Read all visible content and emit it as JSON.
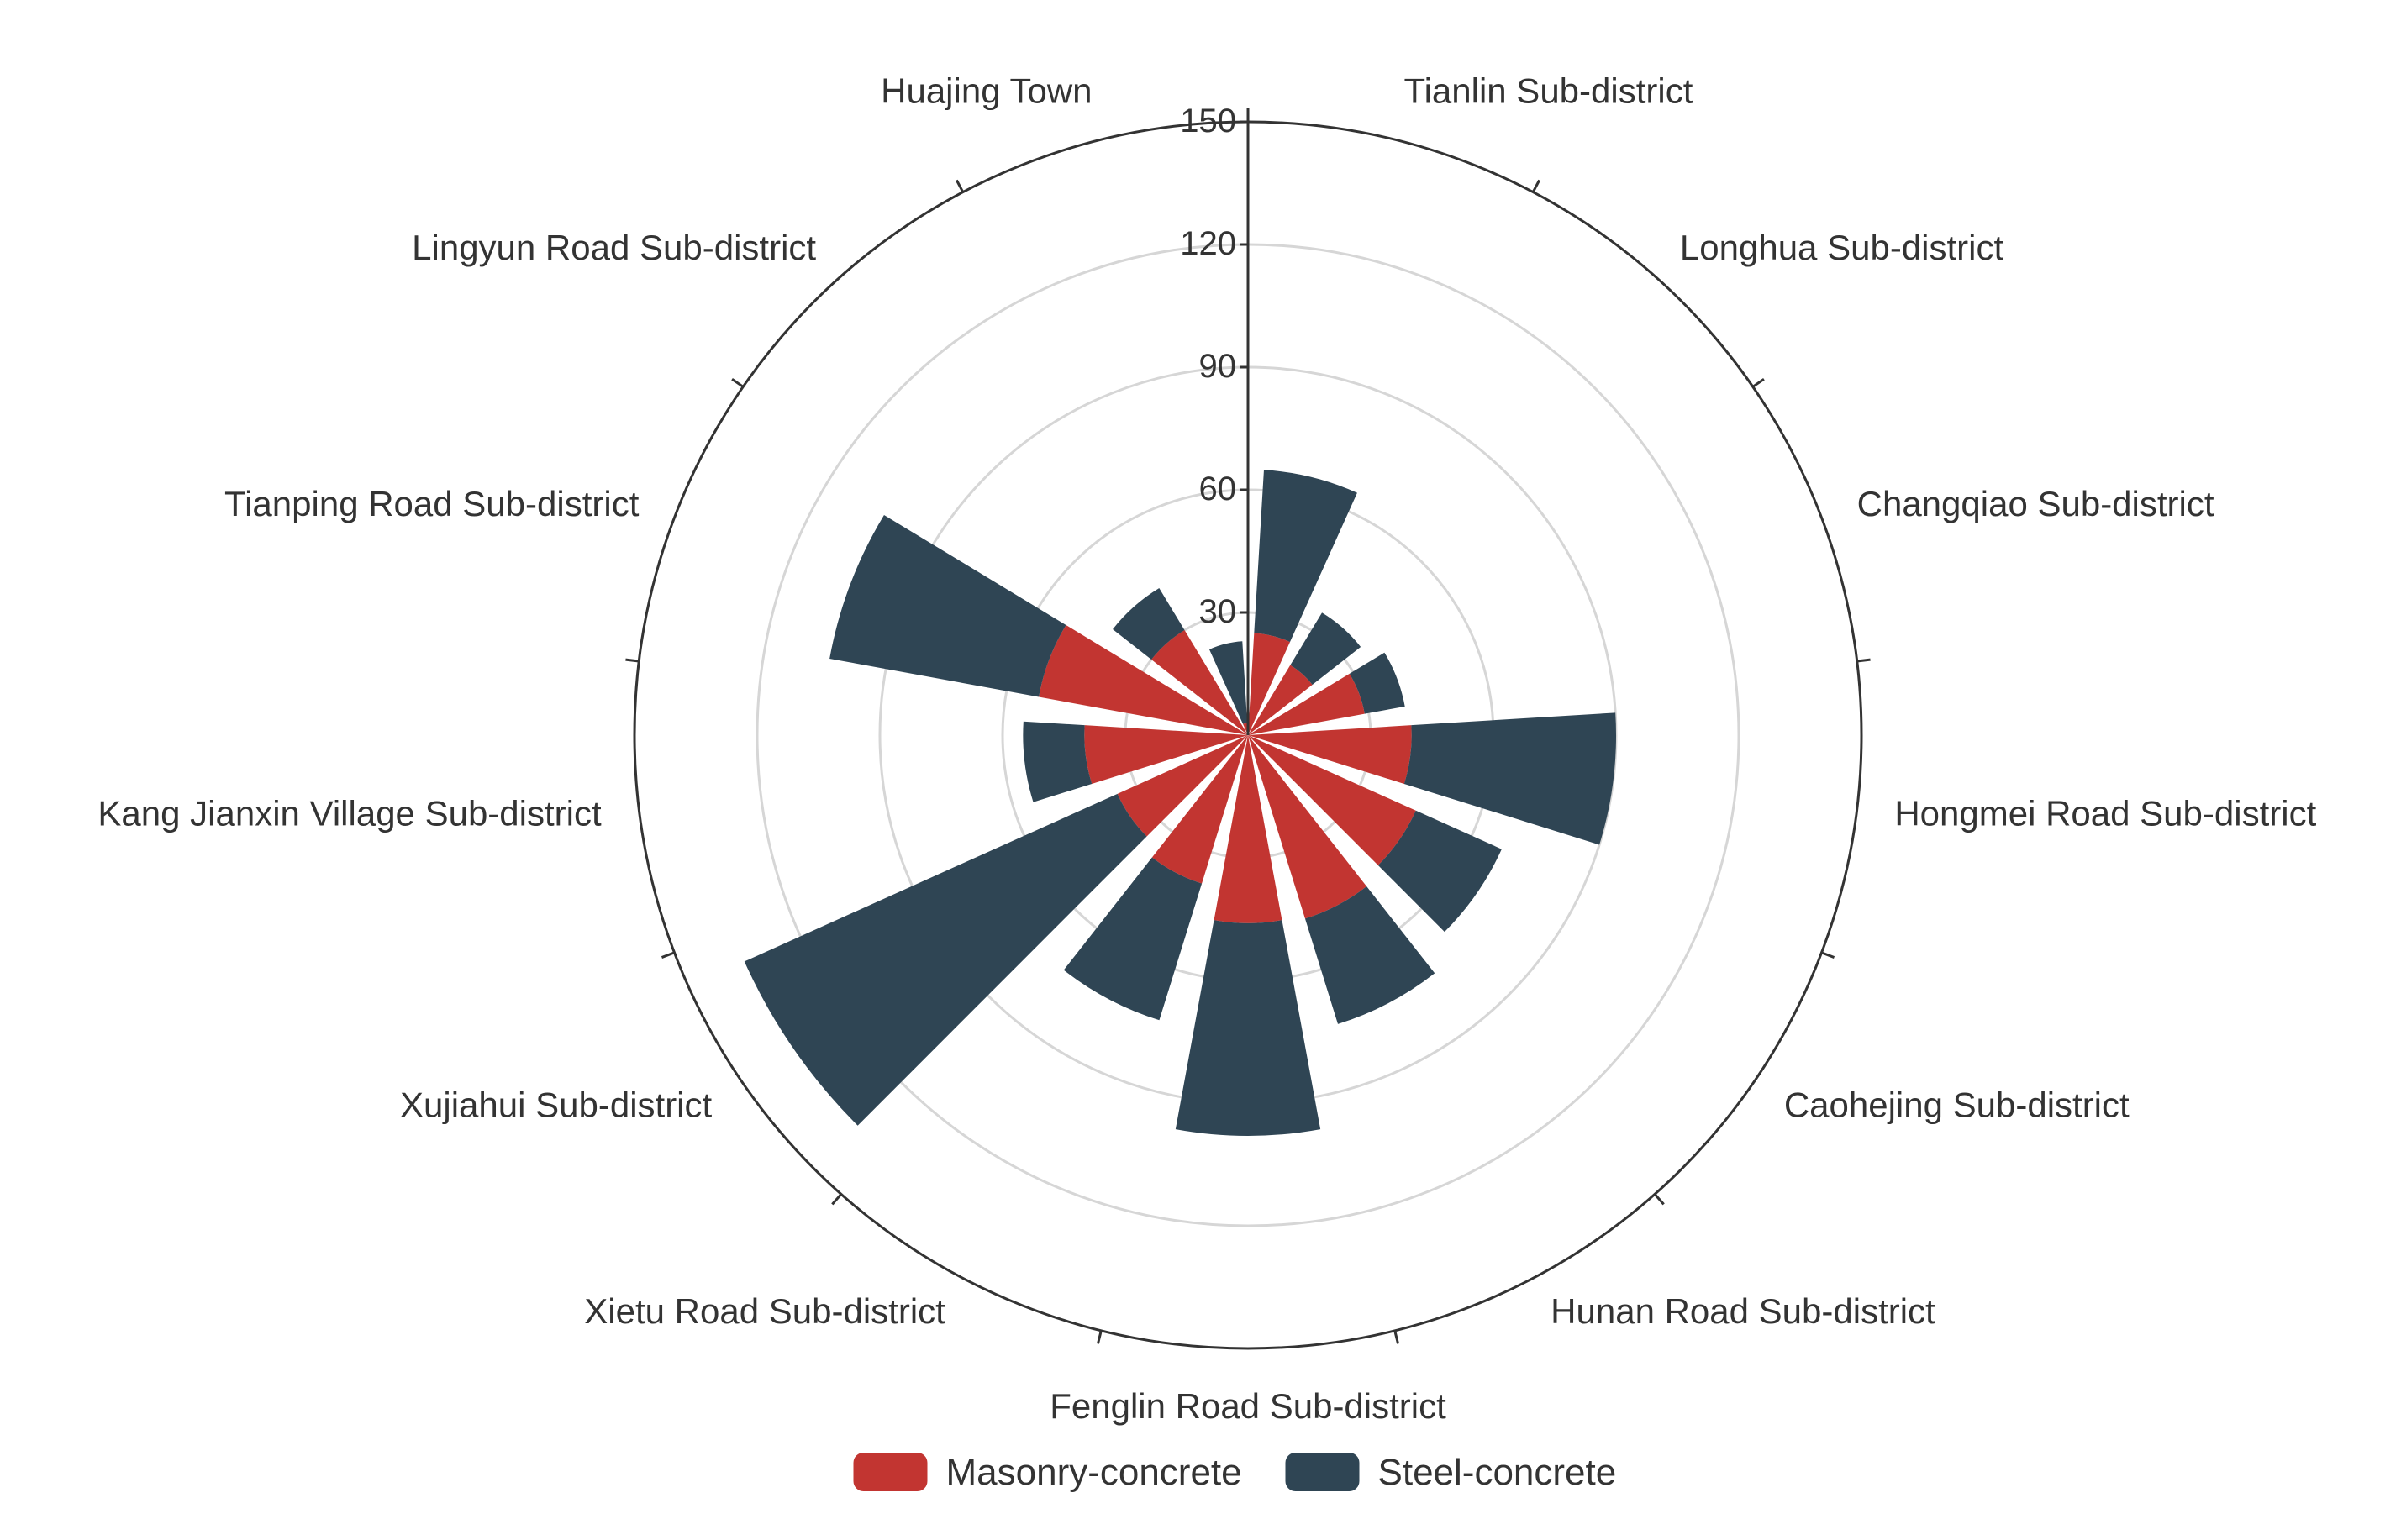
{
  "chart_data": {
    "type": "polar-stacked-bar",
    "title": "",
    "categories": [
      "Tianlin Sub-district",
      "Longhua Sub-district",
      "Changqiao Sub-district",
      "Hongmei Road Sub-district",
      "Caohejing Sub-district",
      "Hunan Road Sub-district",
      "Fenglin Road Sub-district",
      "Xietu Road Sub-district",
      "Xujiahui Sub-district",
      "Kang Jianxin Village Sub-district",
      "Tianping Road Sub-district",
      "Lingyun Road Sub-district",
      "Huajing Town"
    ],
    "series": [
      {
        "name": "Masonry-concrete",
        "color": "#c23531",
        "values": [
          25,
          20,
          29,
          40,
          45,
          47,
          46,
          38,
          35,
          40,
          52,
          30,
          3
        ]
      },
      {
        "name": "Steel-concrete",
        "color": "#2f4554",
        "values": [
          40,
          15,
          10,
          50,
          23,
          27,
          52,
          35,
          100,
          15,
          52,
          12,
          20
        ]
      }
    ],
    "radial_axis": {
      "min": 0,
      "max": 150,
      "ticks": [
        30,
        60,
        90,
        120,
        150
      ]
    },
    "grid": true,
    "legend_position": "bottom-center"
  }
}
